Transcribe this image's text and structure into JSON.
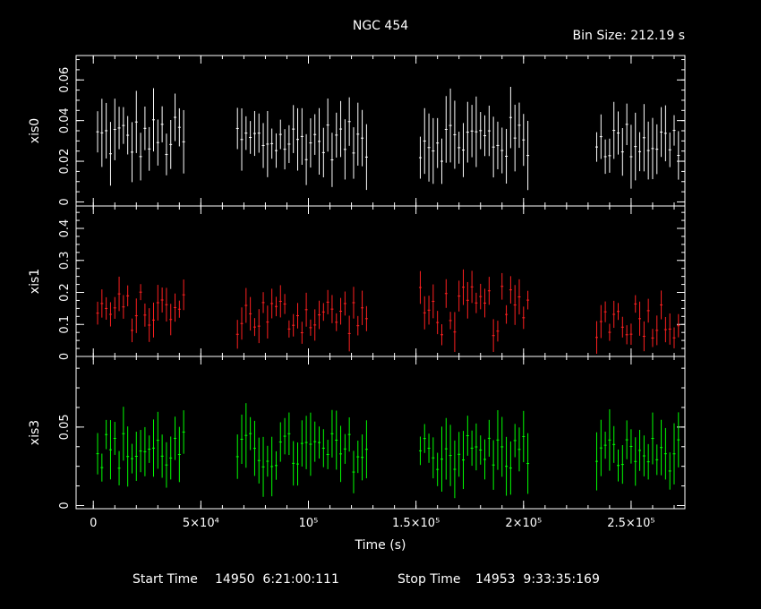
{
  "title": "NGC 454",
  "bin_size_label": "Bin Size: 212.19 s",
  "footer": {
    "start_label": "Start Time",
    "start_value": "14950  6:21:00:111",
    "stop_label": "Stop Time",
    "stop_value": "14953  9:33:35:169"
  },
  "chart_data": [
    {
      "type": "scatter",
      "name": "xis0",
      "ylabel": "xis0",
      "color": "#ffffff",
      "xlim": [
        -8000,
        275000
      ],
      "ylim": [
        -0.002,
        0.072
      ],
      "yticks": [
        {
          "v": 0,
          "label": "0"
        },
        {
          "v": 0.02,
          "label": "0.02"
        },
        {
          "v": 0.04,
          "label": "0.04"
        },
        {
          "v": 0.06,
          "label": "0.06"
        }
      ],
      "segments": [
        {
          "start": 2000,
          "end": 42000,
          "mean": 0.031,
          "amp": 0.007,
          "err": 0.012
        },
        {
          "start": 67000,
          "end": 128000,
          "mean": 0.03,
          "amp": 0.006,
          "err": 0.012
        },
        {
          "start": 152000,
          "end": 203000,
          "mean": 0.031,
          "amp": 0.007,
          "err": 0.013
        },
        {
          "start": 234000,
          "end": 272000,
          "mean": 0.03,
          "amp": 0.006,
          "err": 0.012
        }
      ]
    },
    {
      "type": "scatter",
      "name": "xis1",
      "ylabel": "xis1",
      "color": "#ff2020",
      "xlim": [
        -8000,
        275000
      ],
      "ylim": [
        0.0,
        0.47
      ],
      "yticks": [
        {
          "v": 0.0,
          "label": "0"
        },
        {
          "v": 0.1,
          "label": "0.1"
        },
        {
          "v": 0.2,
          "label": "0.2"
        },
        {
          "v": 0.3,
          "label": "0.3"
        },
        {
          "v": 0.4,
          "label": "0.4"
        }
      ],
      "segments": [
        {
          "start": 2000,
          "end": 42000,
          "mean": 0.14,
          "amp": 0.04,
          "err": 0.04
        },
        {
          "start": 67000,
          "end": 128000,
          "mean": 0.13,
          "amp": 0.04,
          "err": 0.04
        },
        {
          "start": 152000,
          "end": 203000,
          "mean": 0.14,
          "amp": 0.05,
          "err": 0.045
        },
        {
          "start": 234000,
          "end": 272000,
          "mean": 0.12,
          "amp": 0.04,
          "err": 0.04
        }
      ]
    },
    {
      "type": "scatter",
      "name": "xis3",
      "ylabel": "xis3",
      "color": "#00ff00",
      "xlim": [
        -8000,
        275000
      ],
      "ylim": [
        -0.002,
        0.095
      ],
      "yticks": [
        {
          "v": 0,
          "label": "0"
        },
        {
          "v": 0.05,
          "label": "0.05"
        }
      ],
      "xlabel": "Time (s)",
      "xticks": [
        {
          "v": 0,
          "label": "0"
        },
        {
          "v": 50000,
          "label": "5×10⁴"
        },
        {
          "v": 100000,
          "label": "10⁵"
        },
        {
          "v": 150000,
          "label": "1.5×10⁵"
        },
        {
          "v": 200000,
          "label": "2×10⁵"
        },
        {
          "v": 250000,
          "label": "2.5×10⁵"
        }
      ],
      "segments": [
        {
          "start": 2000,
          "end": 42000,
          "mean": 0.035,
          "amp": 0.008,
          "err": 0.014
        },
        {
          "start": 67000,
          "end": 128000,
          "mean": 0.034,
          "amp": 0.008,
          "err": 0.015
        },
        {
          "start": 152000,
          "end": 203000,
          "mean": 0.034,
          "amp": 0.008,
          "err": 0.015
        },
        {
          "start": 234000,
          "end": 272000,
          "mean": 0.033,
          "amp": 0.007,
          "err": 0.014
        }
      ]
    }
  ]
}
